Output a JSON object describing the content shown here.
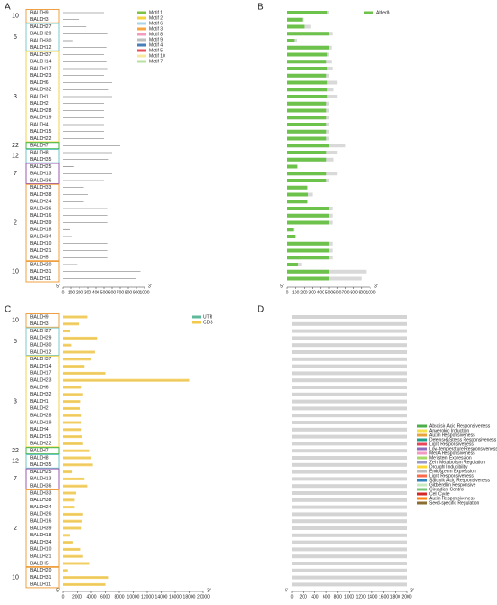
{
  "chart_data": [
    {
      "type": "motif",
      "panel_label": "A",
      "xlim": [
        0,
        1000
      ],
      "xticks": [
        0,
        100,
        200,
        300,
        400,
        500,
        600,
        700,
        800,
        900,
        1000
      ],
      "end_labels": [
        "5'",
        "3'"
      ],
      "legend": [
        {
          "name": "Motif 1",
          "color": "#7dc242"
        },
        {
          "name": "Motif 2",
          "color": "#f5d33f"
        },
        {
          "name": "Motif 6",
          "color": "#a9d3e8"
        },
        {
          "name": "Motif 3",
          "color": "#f7a541"
        },
        {
          "name": "Motif 8",
          "color": "#f29bc0"
        },
        {
          "name": "Motif 9",
          "color": "#bdbdbd"
        },
        {
          "name": "Motif 4",
          "color": "#4a7ebb"
        },
        {
          "name": "Motif 5",
          "color": "#e84d5b"
        },
        {
          "name": "Motif 10",
          "color": "#f8e9a1"
        },
        {
          "name": "Motif 7",
          "color": "#b8e0a0"
        }
      ],
      "groups": [
        {
          "label": "10",
          "color": "#f0a040",
          "categories": [
            "BjALDH9",
            "BjALDH3"
          ],
          "values": [
            500,
            190
          ]
        },
        {
          "label": "5",
          "color": "#7fc8c8",
          "categories": [
            "BjALDH27",
            "BjALDH29",
            "BjALDH30",
            "BjALDH12"
          ],
          "values": [
            280,
            540,
            120,
            530
          ]
        },
        {
          "label": "3",
          "color": "#f2d54a",
          "categories": [
            "BjALDH37",
            "BjALDH14",
            "BjALDH17",
            "BjALDH23",
            "BjALDH6",
            "BjALDH32",
            "BjALDH1",
            "BjALDH2",
            "BjALDH28",
            "BjALDH19",
            "BjALDH4",
            "BjALDH15",
            "BjALDH22"
          ],
          "values": [
            500,
            530,
            540,
            500,
            600,
            560,
            600,
            500,
            500,
            500,
            500,
            500,
            500
          ]
        },
        {
          "label": "22",
          "color": "#3bb54a",
          "categories": [
            "BjALDH7"
          ],
          "values": [
            700
          ]
        },
        {
          "label": "12",
          "color": "#6cc4c4",
          "categories": [
            "BjALDH8",
            "BjALDH35"
          ],
          "values": [
            600,
            560
          ]
        },
        {
          "label": "7",
          "color": "#9b59b6",
          "categories": [
            "BjALDH25",
            "BjALDH13",
            "BjALDH36"
          ],
          "values": [
            130,
            600,
            500
          ]
        },
        {
          "label": "2",
          "color": "#f0a040",
          "categories": [
            "BjALDH33",
            "BjALDH38",
            "BjALDH24",
            "BjALDH26",
            "BjALDH16",
            "BjALDH39",
            "BjALDH18",
            "BjALDH34",
            "BjALDH10",
            "BjALDH21",
            "BjALDH5"
          ],
          "values": [
            250,
            300,
            250,
            540,
            540,
            540,
            80,
            110,
            540,
            540,
            540
          ]
        },
        {
          "label": "10",
          "color": "#f0a040",
          "categories": [
            "BjALDH20",
            "BjALDH31",
            "BjALDH11"
          ],
          "values": [
            170,
            950,
            900
          ]
        }
      ]
    },
    {
      "type": "domain",
      "panel_label": "B",
      "xlim": [
        0,
        1000
      ],
      "xticks": [
        0,
        100,
        200,
        300,
        400,
        500,
        600,
        700,
        800,
        900,
        1000
      ],
      "end_labels": [
        "5'",
        "3'"
      ],
      "lengths": [
        500,
        190,
        280,
        540,
        120,
        530,
        500,
        530,
        540,
        500,
        600,
        560,
        600,
        500,
        500,
        500,
        500,
        500,
        500,
        700,
        600,
        560,
        130,
        600,
        500,
        250,
        300,
        250,
        540,
        540,
        540,
        80,
        110,
        540,
        540,
        540,
        170,
        950,
        900
      ],
      "series": [
        {
          "name": "Aldedh",
          "color": "#6cc24a",
          "values": [
            480,
            180,
            200,
            500,
            80,
            500,
            480,
            470,
            480,
            470,
            480,
            480,
            480,
            470,
            470,
            470,
            470,
            470,
            470,
            500,
            470,
            470,
            120,
            470,
            470,
            240,
            250,
            240,
            500,
            500,
            500,
            70,
            90,
            500,
            500,
            500,
            130,
            500,
            500
          ]
        }
      ]
    },
    {
      "type": "structure",
      "panel_label": "C",
      "xlim": [
        0,
        20000
      ],
      "xticks": [
        0,
        2000,
        4000,
        6000,
        8000,
        10000,
        12000,
        14000,
        16000,
        18000,
        20000
      ],
      "end_labels": [
        "5'",
        "3'"
      ],
      "legend": [
        {
          "name": "UTR",
          "color": "#5dbb9b"
        },
        {
          "name": "CDS",
          "color": "#f2c94c"
        }
      ],
      "groups": [
        {
          "label": "10",
          "color": "#f0a040",
          "categories": [
            "BjALDH9",
            "BjALDH3"
          ],
          "values": [
            3400,
            2200
          ]
        },
        {
          "label": "5",
          "color": "#7fc8c8",
          "categories": [
            "BjALDH27",
            "BjALDH29",
            "BjALDH30",
            "BjALDH12"
          ],
          "values": [
            1000,
            4800,
            1200,
            4500
          ]
        },
        {
          "label": "3",
          "color": "#f2d54a",
          "categories": [
            "BjALDH37",
            "BjALDH14",
            "BjALDH17",
            "BjALDH23",
            "BjALDH6",
            "BjALDH32",
            "BjALDH1",
            "BjALDH2",
            "BjALDH28",
            "BjALDH19",
            "BjALDH4",
            "BjALDH15",
            "BjALDH22"
          ],
          "values": [
            4000,
            3000,
            6000,
            18000,
            2600,
            2800,
            2500,
            2400,
            2600,
            2600,
            2600,
            2700,
            2800
          ]
        },
        {
          "label": "22",
          "color": "#3bb54a",
          "categories": [
            "BjALDH7"
          ],
          "values": [
            3800
          ]
        },
        {
          "label": "12",
          "color": "#6cc4c4",
          "categories": [
            "BjALDH8",
            "BjALDH35"
          ],
          "values": [
            4000,
            4200
          ]
        },
        {
          "label": "7",
          "color": "#9b59b6",
          "categories": [
            "BjALDH25",
            "BjALDH13",
            "BjALDH36"
          ],
          "values": [
            1300,
            3000,
            3400
          ]
        },
        {
          "label": "2",
          "color": "#f0a040",
          "categories": [
            "BjALDH33",
            "BjALDH38",
            "BjALDH24",
            "BjALDH26",
            "BjALDH16",
            "BjALDH39",
            "BjALDH18",
            "BjALDH34",
            "BjALDH10",
            "BjALDH21",
            "BjALDH5"
          ],
          "values": [
            1800,
            1600,
            1600,
            2800,
            2700,
            2600,
            900,
            1400,
            2500,
            2800,
            3800
          ]
        },
        {
          "label": "10",
          "color": "#f0a040",
          "categories": [
            "BjALDH20",
            "BjALDH31",
            "BjALDH11"
          ],
          "values": [
            600,
            6500,
            6000
          ]
        }
      ]
    },
    {
      "type": "promoter",
      "panel_label": "D",
      "xlim": [
        0,
        2000
      ],
      "xticks": [
        0,
        200,
        400,
        600,
        800,
        1000,
        1200,
        1400,
        1600,
        1800,
        2000
      ],
      "end_labels": [
        "5'",
        "3'"
      ],
      "legend": [
        {
          "name": "Abscisic Acid Responsiveness",
          "color": "#4daf4a"
        },
        {
          "name": "Anaerobic Induction",
          "color": "#f4e04d"
        },
        {
          "name": "Auxin Responsiveness",
          "color": "#e8a33d"
        },
        {
          "name": "Defense&Stress Responsiveness",
          "color": "#1f9e89"
        },
        {
          "name": "Light Responsiveness",
          "color": "#e8455a"
        },
        {
          "name": "Low-temperature Responsiveness",
          "color": "#8e6bbf"
        },
        {
          "name": "MeJA Responsiveness",
          "color": "#f49ac2"
        },
        {
          "name": "Meristem Expression",
          "color": "#a6d96a"
        },
        {
          "name": "Zein Metabolism Regulation",
          "color": "#9e9ac8"
        },
        {
          "name": "Drought Inducibility",
          "color": "#fdd835"
        },
        {
          "name": "Endosperm Expression",
          "color": "#bdbdbd"
        },
        {
          "name": "Light Responsiveness",
          "color": "#fb6a4a"
        },
        {
          "name": "Salicylic Acid Responsiveness",
          "color": "#3182bd"
        },
        {
          "name": "Gibberellin Responsive",
          "color": "#c7e9c0"
        },
        {
          "name": "Circadian Control",
          "color": "#74c476"
        },
        {
          "name": "Cell Cycle",
          "color": "#d62728"
        },
        {
          "name": "Auxin Responsiveness",
          "color": "#ff7f0e"
        },
        {
          "name": "Seed-specific Regulation",
          "color": "#8c6d31"
        }
      ]
    }
  ]
}
